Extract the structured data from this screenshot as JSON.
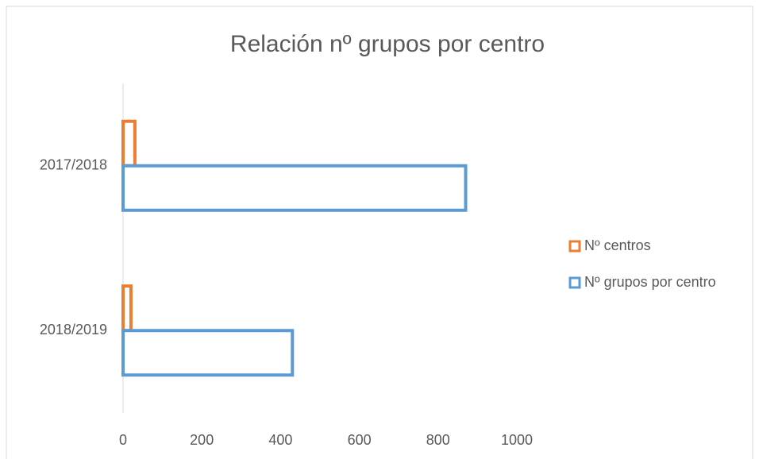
{
  "chart_data": {
    "type": "hbar",
    "title": "Relación nº grupos por centro",
    "categories": [
      "2017/2018",
      "2018/2019"
    ],
    "series": [
      {
        "name": "Nº centros",
        "color": "#ed7d31",
        "values": [
          30,
          20
        ]
      },
      {
        "name": "Nº grupos por centro",
        "color": "#5b9bd5",
        "values": [
          870,
          430
        ]
      }
    ],
    "xlim": [
      0,
      1000
    ],
    "xticks": [
      0,
      200,
      400,
      600,
      800,
      1000
    ],
    "legend": "right"
  }
}
